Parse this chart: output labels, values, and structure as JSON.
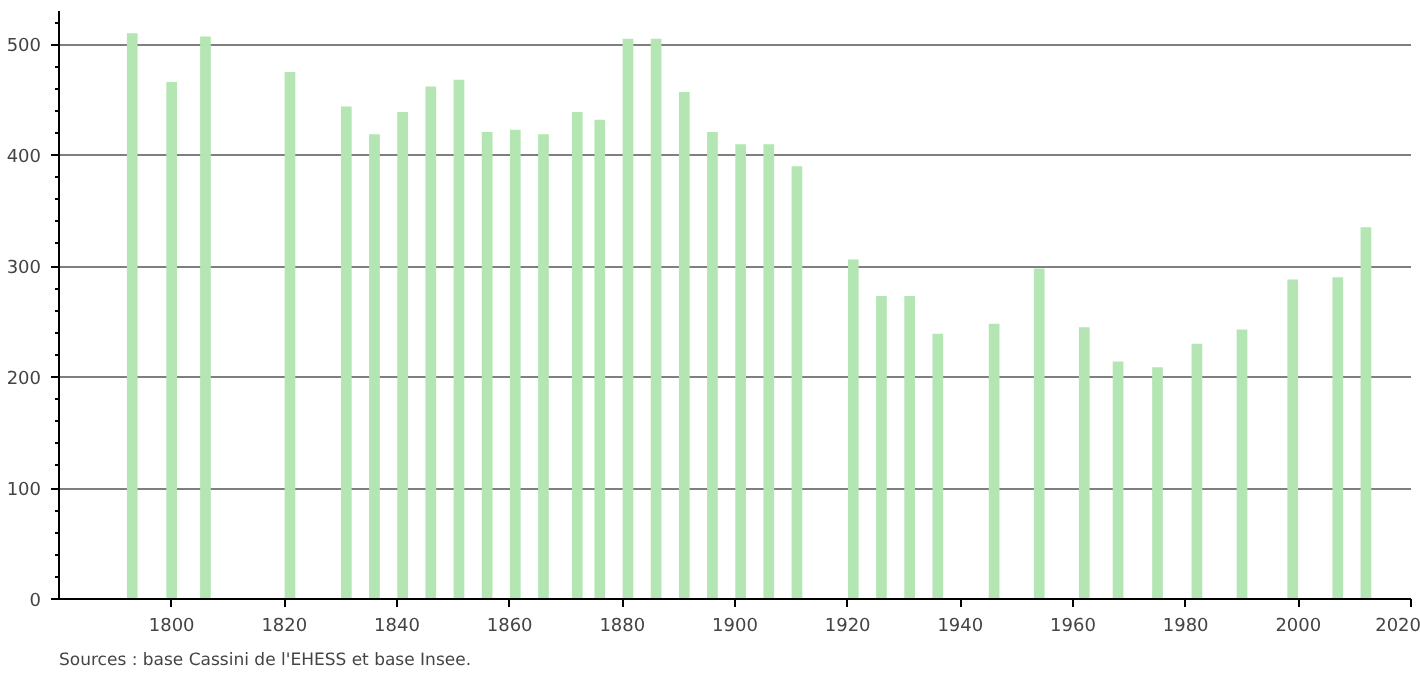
{
  "chart_data": {
    "type": "bar",
    "x": [
      1793,
      1800,
      1806,
      1821,
      1831,
      1836,
      1841,
      1846,
      1851,
      1856,
      1861,
      1866,
      1872,
      1876,
      1881,
      1886,
      1891,
      1896,
      1901,
      1906,
      1911,
      1921,
      1926,
      1931,
      1936,
      1946,
      1954,
      1962,
      1968,
      1975,
      1982,
      1990,
      1999,
      2007,
      2012
    ],
    "values": [
      510,
      466,
      507,
      475,
      444,
      419,
      439,
      462,
      468,
      421,
      423,
      419,
      439,
      432,
      505,
      505,
      457,
      421,
      410,
      410,
      390,
      306,
      273,
      273,
      239,
      248,
      298,
      245,
      214,
      209,
      230,
      243,
      288,
      290,
      335
    ],
    "color": "#b3e6b3",
    "xlim": [
      1780,
      2020
    ],
    "xticks": [
      1800,
      1820,
      1840,
      1860,
      1880,
      1900,
      1920,
      1940,
      1960,
      1980,
      2000,
      2020
    ],
    "ylim": [
      0,
      530
    ],
    "yticks": [
      0,
      100,
      200,
      300,
      400,
      500
    ],
    "grid": "y",
    "annotations": [
      "Sources : base Cassini de l'EHESS et base Insee."
    ]
  }
}
